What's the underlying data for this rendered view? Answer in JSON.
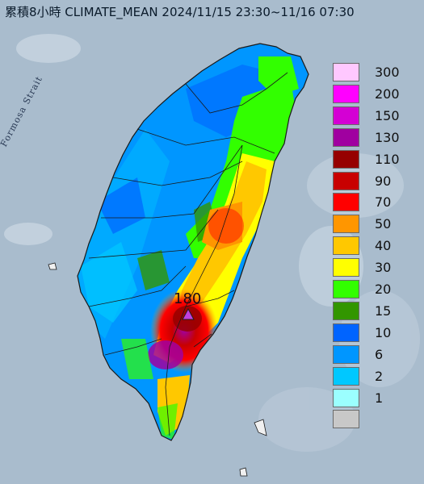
{
  "title": "累積8小時 CLIMATE_MEAN 2024/11/15 23:30~11/16 07:30",
  "sea_label": "Formosa Strait",
  "peak": {
    "label": "180",
    "marker": "triangle-marker",
    "marker_color": "#c040e0"
  },
  "legend": {
    "items": [
      {
        "label": "300",
        "color": "#ffc8ff"
      },
      {
        "label": "200",
        "color": "#ff00ff"
      },
      {
        "label": "150",
        "color": "#d400d4"
      },
      {
        "label": "130",
        "color": "#a000a0"
      },
      {
        "label": "110",
        "color": "#960000"
      },
      {
        "label": "90",
        "color": "#c80000"
      },
      {
        "label": "70",
        "color": "#ff0000"
      },
      {
        "label": "50",
        "color": "#ff9600"
      },
      {
        "label": "40",
        "color": "#ffc800"
      },
      {
        "label": "30",
        "color": "#ffff00"
      },
      {
        "label": "20",
        "color": "#32ff00"
      },
      {
        "label": "15",
        "color": "#329600"
      },
      {
        "label": "10",
        "color": "#0064ff"
      },
      {
        "label": "6",
        "color": "#0096ff"
      },
      {
        "label": "2",
        "color": "#00c8ff"
      },
      {
        "label": "1",
        "color": "#9bffff"
      },
      {
        "label": "",
        "color": "#c8c8c8"
      }
    ]
  }
}
